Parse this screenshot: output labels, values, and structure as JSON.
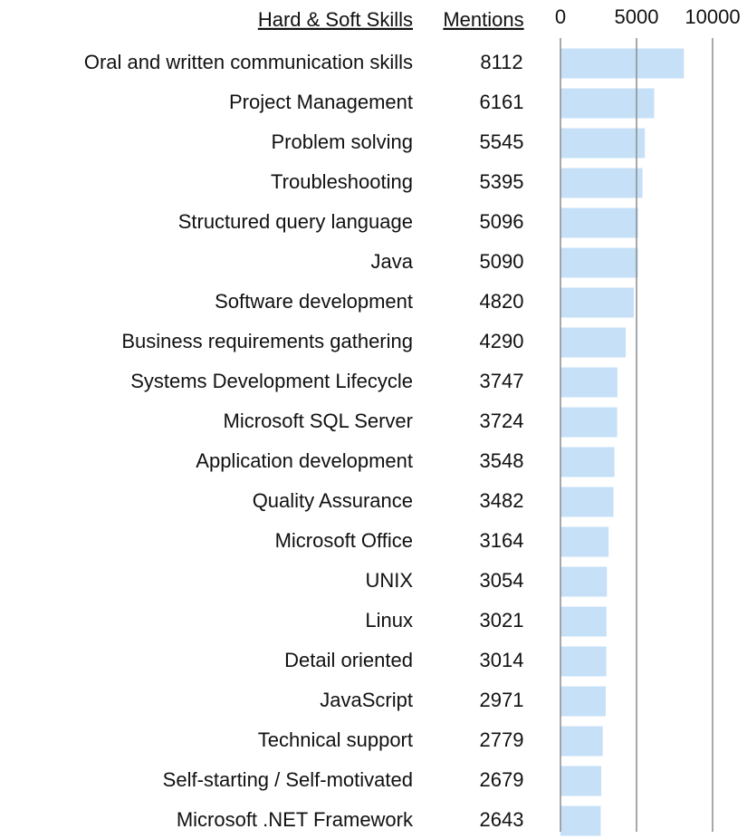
{
  "chart_data": {
    "type": "bar",
    "orientation": "horizontal",
    "label_header": "Hard & Soft Skills",
    "value_header": "Mentions",
    "categories": [
      "Oral and written communication skills",
      "Project Management",
      "Problem solving",
      "Troubleshooting",
      "Structured query language",
      "Java",
      "Software development",
      "Business requirements gathering",
      "Systems Development Lifecycle",
      "Microsoft SQL Server",
      "Application development",
      "Quality Assurance",
      "Microsoft Office",
      "UNIX",
      "Linux",
      "Detail oriented",
      "JavaScript",
      "Technical support",
      "Self-starting / Self-motivated",
      "Microsoft .NET Framework"
    ],
    "values": [
      8112,
      6161,
      5545,
      5395,
      5096,
      5090,
      4820,
      4290,
      3747,
      3724,
      3548,
      3482,
      3164,
      3054,
      3021,
      3014,
      2971,
      2779,
      2679,
      2643
    ],
    "color": "#c6e0f8",
    "xlim": [
      0,
      10000
    ],
    "xticks": [
      0,
      5000,
      10000
    ],
    "grid": true
  }
}
